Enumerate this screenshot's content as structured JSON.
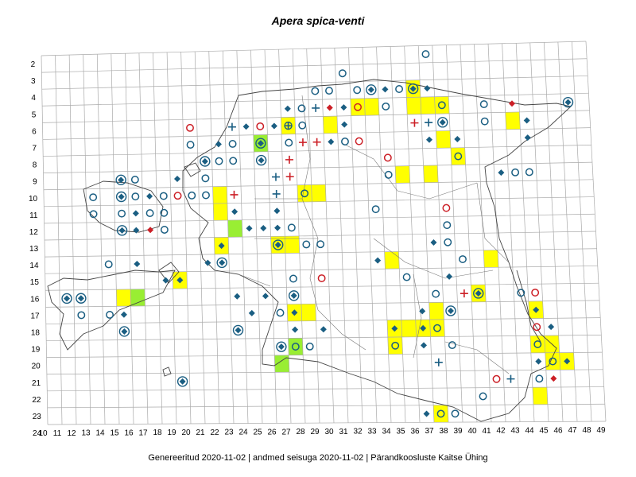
{
  "title": "Apera spica-venti",
  "footer": "Genereeritud 2020-11-02  |  andmed seisuga 2020-11-02  |  Pärandkoosluste Kaitse Ühing",
  "colors": {
    "grid": "#aaaaaa",
    "border": "#444444",
    "yellow": "#ffff00",
    "green": "#99ee33",
    "blue": "#1a5e82",
    "red": "#cc1f26"
  },
  "row_labels": [
    "2",
    "3",
    "4",
    "5",
    "6",
    "7",
    "8",
    "9",
    "10",
    "11",
    "12",
    "13",
    "14",
    "15",
    "16",
    "17",
    "18",
    "19",
    "20",
    "21",
    "22",
    "23",
    "24"
  ],
  "col_labels": [
    "10",
    "11",
    "12",
    "13",
    "14",
    "15",
    "16",
    "17",
    "18",
    "19",
    "20",
    "21",
    "22",
    "23",
    "24",
    "25",
    "26",
    "27",
    "28",
    "29",
    "30",
    "31",
    "32",
    "33",
    "34",
    "35",
    "36",
    "37",
    "38",
    "39",
    "40",
    "41",
    "42",
    "43",
    "44",
    "45",
    "46",
    "47",
    "48",
    "49"
  ],
  "legend_marker_types": [
    "blue-circle",
    "red-circle",
    "blue-diamond",
    "red-diamond",
    "blue-cross",
    "red-cross",
    "diamond-in-circle",
    "circle-cross",
    "yellow-square",
    "green-square"
  ],
  "squares": [
    {
      "col": 36,
      "row": 4,
      "fill": "yellow"
    },
    {
      "col": 36,
      "row": 5,
      "fill": "yellow"
    },
    {
      "col": 37,
      "row": 5,
      "fill": "yellow"
    },
    {
      "col": 38,
      "row": 5,
      "fill": "yellow"
    },
    {
      "col": 32,
      "row": 5,
      "fill": "yellow"
    },
    {
      "col": 33,
      "row": 5,
      "fill": "yellow"
    },
    {
      "col": 30,
      "row": 6,
      "fill": "yellow"
    },
    {
      "col": 27,
      "row": 6,
      "fill": "yellow"
    },
    {
      "col": 43,
      "row": 6,
      "fill": "yellow"
    },
    {
      "col": 38,
      "row": 7,
      "fill": "yellow"
    },
    {
      "col": 39,
      "row": 8,
      "fill": "yellow"
    },
    {
      "col": 35,
      "row": 9,
      "fill": "yellow"
    },
    {
      "col": 37,
      "row": 9,
      "fill": "yellow"
    },
    {
      "col": 22,
      "row": 10,
      "fill": "yellow"
    },
    {
      "col": 28,
      "row": 10,
      "fill": "yellow"
    },
    {
      "col": 29,
      "row": 10,
      "fill": "yellow"
    },
    {
      "col": 22,
      "row": 11,
      "fill": "yellow"
    },
    {
      "col": 25,
      "row": 7,
      "fill": "green"
    },
    {
      "col": 23,
      "row": 12,
      "fill": "green"
    },
    {
      "col": 22,
      "row": 13,
      "fill": "yellow"
    },
    {
      "col": 26,
      "row": 13,
      "fill": "yellow"
    },
    {
      "col": 27,
      "row": 13,
      "fill": "yellow"
    },
    {
      "col": 34,
      "row": 14,
      "fill": "yellow"
    },
    {
      "col": 41,
      "row": 14,
      "fill": "yellow"
    },
    {
      "col": 19,
      "row": 15,
      "fill": "yellow"
    },
    {
      "col": 15,
      "row": 16,
      "fill": "yellow"
    },
    {
      "col": 16,
      "row": 16,
      "fill": "green"
    },
    {
      "col": 40,
      "row": 16,
      "fill": "yellow"
    },
    {
      "col": 27,
      "row": 17,
      "fill": "yellow"
    },
    {
      "col": 28,
      "row": 17,
      "fill": "yellow"
    },
    {
      "col": 37,
      "row": 17,
      "fill": "yellow"
    },
    {
      "col": 44,
      "row": 17,
      "fill": "yellow"
    },
    {
      "col": 34,
      "row": 18,
      "fill": "yellow"
    },
    {
      "col": 35,
      "row": 18,
      "fill": "yellow"
    },
    {
      "col": 36,
      "row": 18,
      "fill": "yellow"
    },
    {
      "col": 37,
      "row": 18,
      "fill": "yellow"
    },
    {
      "col": 34,
      "row": 19,
      "fill": "yellow"
    },
    {
      "col": 44,
      "row": 19,
      "fill": "yellow"
    },
    {
      "col": 45,
      "row": 19,
      "fill": "yellow"
    },
    {
      "col": 27,
      "row": 19,
      "fill": "green"
    },
    {
      "col": 26,
      "row": 20,
      "fill": "green"
    },
    {
      "col": 45,
      "row": 20,
      "fill": "yellow"
    },
    {
      "col": 46,
      "row": 20,
      "fill": "yellow"
    },
    {
      "col": 44,
      "row": 22,
      "fill": "yellow"
    },
    {
      "col": 37,
      "row": 23,
      "fill": "yellow"
    }
  ],
  "markers": [
    {
      "col": 37,
      "row": 2,
      "type": "blue-circle"
    },
    {
      "col": 31,
      "row": 3,
      "type": "blue-circle"
    },
    {
      "col": 33,
      "row": 4,
      "type": "diamond-in-circle"
    },
    {
      "col": 34,
      "row": 4,
      "type": "blue-diamond"
    },
    {
      "col": 35,
      "row": 4,
      "type": "blue-circle"
    },
    {
      "col": 36,
      "row": 4,
      "type": "diamond-in-circle"
    },
    {
      "col": 37,
      "row": 4,
      "type": "blue-diamond"
    },
    {
      "col": 32,
      "row": 4,
      "type": "blue-circle"
    },
    {
      "col": 29,
      "row": 4,
      "type": "blue-circle"
    },
    {
      "col": 30,
      "row": 4,
      "type": "blue-circle"
    },
    {
      "col": 27,
      "row": 5,
      "type": "blue-diamond"
    },
    {
      "col": 28,
      "row": 5,
      "type": "blue-circle"
    },
    {
      "col": 29,
      "row": 5,
      "type": "blue-cross"
    },
    {
      "col": 30,
      "row": 5,
      "type": "red-diamond"
    },
    {
      "col": 31,
      "row": 5,
      "type": "blue-diamond"
    },
    {
      "col": 32,
      "row": 5,
      "type": "red-circle"
    },
    {
      "col": 34,
      "row": 5,
      "type": "blue-circle"
    },
    {
      "col": 38,
      "row": 5,
      "type": "blue-circle"
    },
    {
      "col": 41,
      "row": 5,
      "type": "blue-circle"
    },
    {
      "col": 43,
      "row": 5,
      "type": "red-diamond"
    },
    {
      "col": 47,
      "row": 5,
      "type": "diamond-in-circle"
    },
    {
      "col": 20,
      "row": 6,
      "type": "red-circle"
    },
    {
      "col": 23,
      "row": 6,
      "type": "blue-cross"
    },
    {
      "col": 24,
      "row": 6,
      "type": "blue-diamond"
    },
    {
      "col": 25,
      "row": 6,
      "type": "red-circle"
    },
    {
      "col": 26,
      "row": 6,
      "type": "blue-diamond"
    },
    {
      "col": 27,
      "row": 6,
      "type": "circle-cross"
    },
    {
      "col": 28,
      "row": 6,
      "type": "blue-circle"
    },
    {
      "col": 31,
      "row": 6,
      "type": "blue-diamond"
    },
    {
      "col": 36,
      "row": 6,
      "type": "red-cross"
    },
    {
      "col": 37,
      "row": 6,
      "type": "blue-cross"
    },
    {
      "col": 38,
      "row": 6,
      "type": "diamond-in-circle"
    },
    {
      "col": 41,
      "row": 6,
      "type": "blue-circle"
    },
    {
      "col": 44,
      "row": 6,
      "type": "blue-diamond"
    },
    {
      "col": 20,
      "row": 7,
      "type": "blue-circle"
    },
    {
      "col": 22,
      "row": 7,
      "type": "blue-diamond"
    },
    {
      "col": 23,
      "row": 7,
      "type": "blue-circle"
    },
    {
      "col": 25,
      "row": 7,
      "type": "diamond-in-circle"
    },
    {
      "col": 27,
      "row": 7,
      "type": "blue-circle"
    },
    {
      "col": 28,
      "row": 7,
      "type": "red-cross"
    },
    {
      "col": 29,
      "row": 7,
      "type": "red-cross"
    },
    {
      "col": 30,
      "row": 7,
      "type": "blue-diamond"
    },
    {
      "col": 31,
      "row": 7,
      "type": "blue-circle"
    },
    {
      "col": 32,
      "row": 7,
      "type": "red-circle"
    },
    {
      "col": 37,
      "row": 7,
      "type": "blue-diamond"
    },
    {
      "col": 39,
      "row": 7,
      "type": "blue-diamond"
    },
    {
      "col": 44,
      "row": 7,
      "type": "blue-diamond"
    },
    {
      "col": 21,
      "row": 8,
      "type": "diamond-in-circle"
    },
    {
      "col": 22,
      "row": 8,
      "type": "blue-circle"
    },
    {
      "col": 23,
      "row": 8,
      "type": "blue-circle"
    },
    {
      "col": 25,
      "row": 8,
      "type": "diamond-in-circle"
    },
    {
      "col": 27,
      "row": 8,
      "type": "red-cross"
    },
    {
      "col": 34,
      "row": 8,
      "type": "red-circle"
    },
    {
      "col": 39,
      "row": 8,
      "type": "blue-circle"
    },
    {
      "col": 15,
      "row": 9,
      "type": "diamond-in-circle"
    },
    {
      "col": 16,
      "row": 9,
      "type": "blue-circle"
    },
    {
      "col": 19,
      "row": 9,
      "type": "blue-diamond"
    },
    {
      "col": 21,
      "row": 9,
      "type": "blue-circle"
    },
    {
      "col": 26,
      "row": 9,
      "type": "blue-cross"
    },
    {
      "col": 27,
      "row": 9,
      "type": "red-cross"
    },
    {
      "col": 34,
      "row": 9,
      "type": "blue-circle"
    },
    {
      "col": 42,
      "row": 9,
      "type": "blue-diamond"
    },
    {
      "col": 43,
      "row": 9,
      "type": "blue-circle"
    },
    {
      "col": 44,
      "row": 9,
      "type": "blue-circle"
    },
    {
      "col": 13,
      "row": 10,
      "type": "blue-circle"
    },
    {
      "col": 15,
      "row": 10,
      "type": "diamond-in-circle"
    },
    {
      "col": 16,
      "row": 10,
      "type": "blue-circle"
    },
    {
      "col": 17,
      "row": 10,
      "type": "blue-diamond"
    },
    {
      "col": 18,
      "row": 10,
      "type": "blue-circle"
    },
    {
      "col": 19,
      "row": 10,
      "type": "red-circle"
    },
    {
      "col": 20,
      "row": 10,
      "type": "blue-circle"
    },
    {
      "col": 21,
      "row": 10,
      "type": "blue-circle"
    },
    {
      "col": 23,
      "row": 10,
      "type": "red-cross"
    },
    {
      "col": 26,
      "row": 10,
      "type": "blue-cross"
    },
    {
      "col": 28,
      "row": 10,
      "type": "blue-circle"
    },
    {
      "col": 13,
      "row": 11,
      "type": "blue-circle"
    },
    {
      "col": 15,
      "row": 11,
      "type": "blue-circle"
    },
    {
      "col": 16,
      "row": 11,
      "type": "blue-diamond"
    },
    {
      "col": 17,
      "row": 11,
      "type": "blue-circle"
    },
    {
      "col": 18,
      "row": 11,
      "type": "blue-circle"
    },
    {
      "col": 23,
      "row": 11,
      "type": "blue-diamond"
    },
    {
      "col": 26,
      "row": 11,
      "type": "blue-diamond"
    },
    {
      "col": 33,
      "row": 11,
      "type": "blue-circle"
    },
    {
      "col": 38,
      "row": 11,
      "type": "red-circle"
    },
    {
      "col": 15,
      "row": 12,
      "type": "diamond-in-circle"
    },
    {
      "col": 16,
      "row": 12,
      "type": "blue-diamond"
    },
    {
      "col": 17,
      "row": 12,
      "type": "red-diamond"
    },
    {
      "col": 18,
      "row": 12,
      "type": "blue-circle"
    },
    {
      "col": 24,
      "row": 12,
      "type": "blue-diamond"
    },
    {
      "col": 25,
      "row": 12,
      "type": "blue-diamond"
    },
    {
      "col": 26,
      "row": 12,
      "type": "blue-diamond"
    },
    {
      "col": 27,
      "row": 12,
      "type": "blue-circle"
    },
    {
      "col": 38,
      "row": 12,
      "type": "blue-circle"
    },
    {
      "col": 22,
      "row": 13,
      "type": "blue-diamond"
    },
    {
      "col": 26,
      "row": 13,
      "type": "diamond-in-circle"
    },
    {
      "col": 28,
      "row": 13,
      "type": "blue-circle"
    },
    {
      "col": 29,
      "row": 13,
      "type": "blue-circle"
    },
    {
      "col": 37,
      "row": 13,
      "type": "blue-diamond"
    },
    {
      "col": 38,
      "row": 13,
      "type": "blue-circle"
    },
    {
      "col": 14,
      "row": 14,
      "type": "blue-circle"
    },
    {
      "col": 16,
      "row": 14,
      "type": "blue-diamond"
    },
    {
      "col": 21,
      "row": 14,
      "type": "blue-diamond"
    },
    {
      "col": 22,
      "row": 14,
      "type": "diamond-in-circle"
    },
    {
      "col": 33,
      "row": 14,
      "type": "blue-diamond"
    },
    {
      "col": 39,
      "row": 14,
      "type": "blue-circle"
    },
    {
      "col": 18,
      "row": 15,
      "type": "blue-diamond"
    },
    {
      "col": 19,
      "row": 15,
      "type": "blue-diamond"
    },
    {
      "col": 27,
      "row": 15,
      "type": "blue-circle"
    },
    {
      "col": 29,
      "row": 15,
      "type": "red-circle"
    },
    {
      "col": 35,
      "row": 15,
      "type": "blue-circle"
    },
    {
      "col": 38,
      "row": 15,
      "type": "blue-diamond"
    },
    {
      "col": 11,
      "row": 16,
      "type": "diamond-in-circle"
    },
    {
      "col": 12,
      "row": 16,
      "type": "diamond-in-circle"
    },
    {
      "col": 23,
      "row": 16,
      "type": "blue-diamond"
    },
    {
      "col": 25,
      "row": 16,
      "type": "blue-diamond"
    },
    {
      "col": 27,
      "row": 16,
      "type": "diamond-in-circle"
    },
    {
      "col": 37,
      "row": 16,
      "type": "blue-circle"
    },
    {
      "col": 39,
      "row": 16,
      "type": "red-cross"
    },
    {
      "col": 40,
      "row": 16,
      "type": "diamond-in-circle"
    },
    {
      "col": 43,
      "row": 16,
      "type": "blue-circle"
    },
    {
      "col": 44,
      "row": 16,
      "type": "red-circle"
    },
    {
      "col": 12,
      "row": 17,
      "type": "blue-circle"
    },
    {
      "col": 14,
      "row": 17,
      "type": "blue-circle"
    },
    {
      "col": 15,
      "row": 17,
      "type": "blue-diamond"
    },
    {
      "col": 24,
      "row": 17,
      "type": "blue-diamond"
    },
    {
      "col": 26,
      "row": 17,
      "type": "blue-circle"
    },
    {
      "col": 27,
      "row": 17,
      "type": "blue-diamond"
    },
    {
      "col": 36,
      "row": 17,
      "type": "blue-diamond"
    },
    {
      "col": 38,
      "row": 17,
      "type": "diamond-in-circle"
    },
    {
      "col": 44,
      "row": 17,
      "type": "blue-diamond"
    },
    {
      "col": 15,
      "row": 18,
      "type": "diamond-in-circle"
    },
    {
      "col": 23,
      "row": 18,
      "type": "diamond-in-circle"
    },
    {
      "col": 27,
      "row": 18,
      "type": "blue-diamond"
    },
    {
      "col": 29,
      "row": 18,
      "type": "blue-diamond"
    },
    {
      "col": 34,
      "row": 18,
      "type": "blue-diamond"
    },
    {
      "col": 36,
      "row": 18,
      "type": "blue-diamond"
    },
    {
      "col": 37,
      "row": 18,
      "type": "blue-circle"
    },
    {
      "col": 44,
      "row": 18,
      "type": "red-circle"
    },
    {
      "col": 45,
      "row": 18,
      "type": "blue-diamond"
    },
    {
      "col": 26,
      "row": 19,
      "type": "diamond-in-circle"
    },
    {
      "col": 27,
      "row": 19,
      "type": "blue-circle"
    },
    {
      "col": 28,
      "row": 19,
      "type": "blue-circle"
    },
    {
      "col": 34,
      "row": 19,
      "type": "blue-circle"
    },
    {
      "col": 36,
      "row": 19,
      "type": "blue-diamond"
    },
    {
      "col": 38,
      "row": 19,
      "type": "blue-circle"
    },
    {
      "col": 44,
      "row": 19,
      "type": "blue-circle"
    },
    {
      "col": 37,
      "row": 20,
      "type": "blue-cross"
    },
    {
      "col": 45,
      "row": 20,
      "type": "blue-circle"
    },
    {
      "col": 46,
      "row": 20,
      "type": "blue-diamond"
    },
    {
      "col": 44,
      "row": 20,
      "type": "blue-diamond"
    },
    {
      "col": 19,
      "row": 21,
      "type": "diamond-in-circle"
    },
    {
      "col": 41,
      "row": 21,
      "type": "red-circle"
    },
    {
      "col": 42,
      "row": 21,
      "type": "blue-cross"
    },
    {
      "col": 44,
      "row": 21,
      "type": "blue-circle"
    },
    {
      "col": 45,
      "row": 21,
      "type": "red-diamond"
    },
    {
      "col": 40,
      "row": 22,
      "type": "blue-circle"
    },
    {
      "col": 37,
      "row": 23,
      "type": "blue-circle"
    },
    {
      "col": 38,
      "row": 23,
      "type": "blue-circle"
    },
    {
      "col": 36,
      "row": 23,
      "type": "blue-diamond"
    }
  ]
}
